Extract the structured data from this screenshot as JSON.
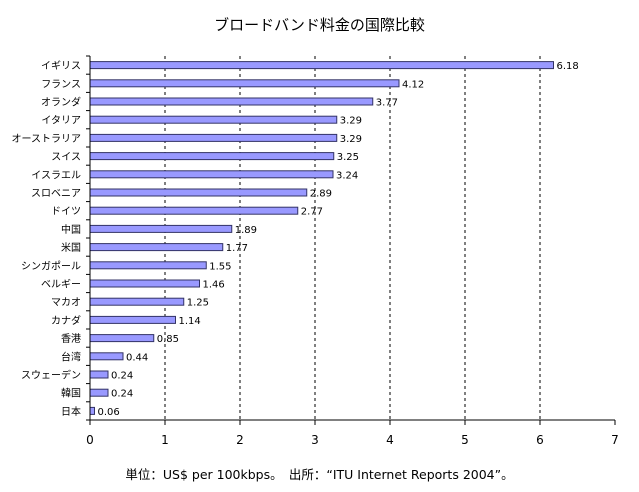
{
  "chart_data": {
    "type": "bar",
    "orientation": "horizontal",
    "title": "ブロードバンド料金の国際比較",
    "footnote": "単位：US$ per 100kbps。　出所：“ITU Internet Reports 2004”。",
    "categories": [
      "イギリス",
      "フランス",
      "オランダ",
      "イタリア",
      "オーストラリア",
      "スイス",
      "イスラエル",
      "スロベニア",
      "ドイツ",
      "中国",
      "米国",
      "シンガポール",
      "ベルギー",
      "マカオ",
      "カナダ",
      "香港",
      "台湾",
      "スウェーデン",
      "韓国",
      "日本"
    ],
    "values": [
      6.18,
      4.12,
      3.77,
      3.29,
      3.29,
      3.25,
      3.24,
      2.89,
      2.77,
      1.89,
      1.77,
      1.55,
      1.46,
      1.25,
      1.14,
      0.85,
      0.44,
      0.24,
      0.24,
      0.06
    ],
    "value_labels": [
      "6.18",
      "4.12",
      "3.77",
      "3.29",
      "3.29",
      "3.25",
      "3.24",
      "2.89",
      "2.77",
      "1.89",
      "1.77",
      "1.55",
      "1.46",
      "1.25",
      "1.14",
      "0.85",
      "0.44",
      "0.24",
      "0.24",
      "0.06"
    ],
    "xlim": [
      0,
      7
    ],
    "x_ticks": [
      "0",
      "1",
      "2",
      "3",
      "4",
      "5",
      "6",
      "7"
    ],
    "grid": "vertical dashed",
    "legend": "none",
    "colors": {
      "bar_fill": "#9999ff",
      "bar_stroke": "#333366",
      "axis": "#000000",
      "grid": "#000000"
    }
  }
}
